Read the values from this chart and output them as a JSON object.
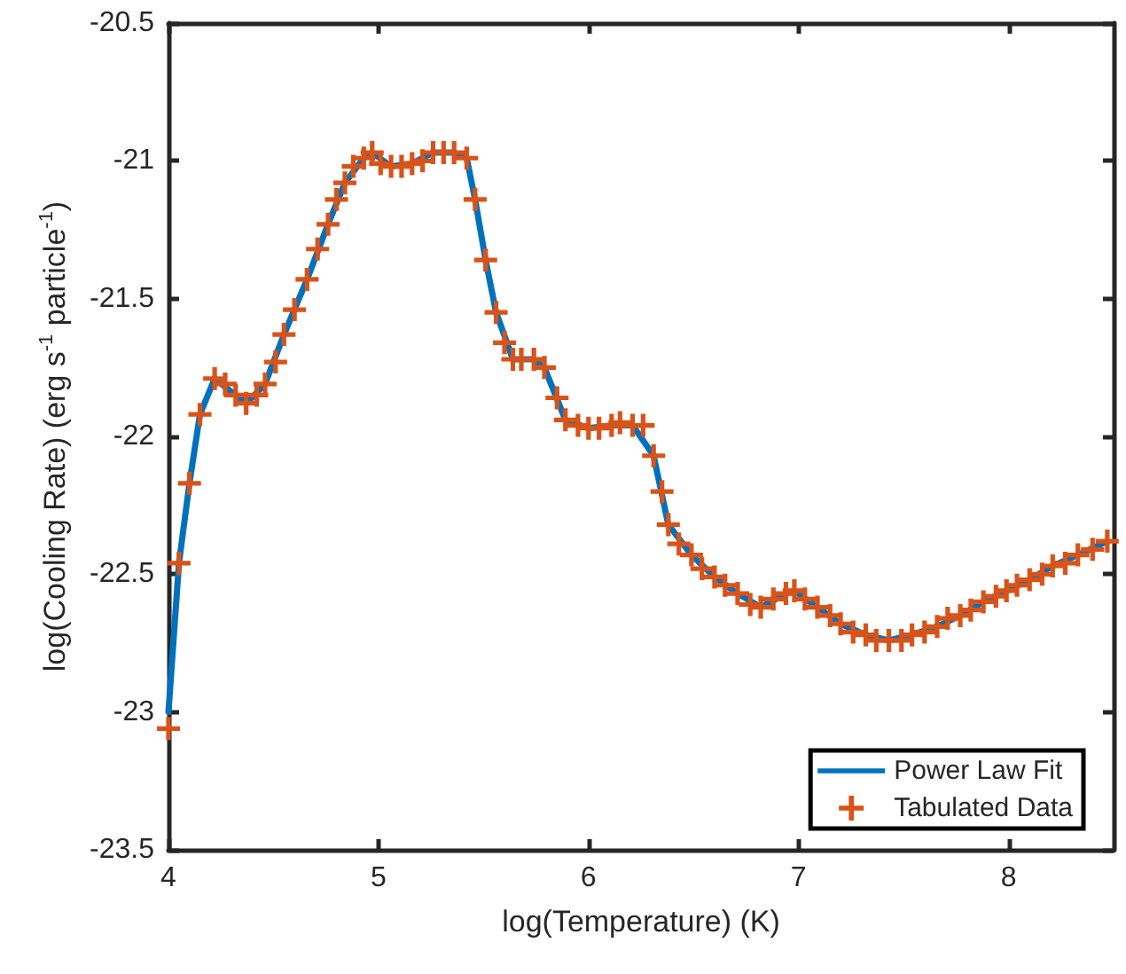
{
  "chart_data": {
    "type": "line",
    "xlabel": "log(Temperature) (K)",
    "ylabel": "log(Cooling Rate) (erg s$^{-1}$ particle$^{-1}$)",
    "xlim": [
      4,
      8.5
    ],
    "xticks": [
      4,
      5,
      6,
      7,
      8
    ],
    "ylim": [
      -23.5,
      -20.5
    ],
    "yticks": [
      -23.5,
      -23,
      -22.5,
      -22,
      -21.5,
      -21,
      -20.5
    ],
    "grid": false,
    "legend": "bottom right",
    "series": [
      {
        "name": "Power Law Fit",
        "marker": "none",
        "line_style": "solid",
        "color": "#0072bd",
        "x": [
          4.0,
          4.05,
          4.1,
          4.15,
          4.22,
          4.32,
          4.37,
          4.46,
          4.55,
          4.66,
          4.76,
          4.84,
          4.93,
          4.97,
          5.06,
          5.16,
          5.26,
          5.36,
          5.42,
          5.46,
          5.51,
          5.56,
          5.64,
          5.74,
          5.79,
          5.89,
          6.0,
          6.11,
          6.21,
          6.31,
          6.38,
          6.49,
          6.6,
          6.71,
          6.82,
          6.94,
          6.98,
          7.09,
          7.2,
          7.32,
          7.43,
          7.54,
          7.66,
          7.77,
          7.88,
          7.99,
          8.1,
          8.21,
          8.33,
          8.47
        ],
        "values": [
          -23.0,
          -22.46,
          -22.17,
          -21.92,
          -21.79,
          -21.85,
          -21.88,
          -21.81,
          -21.63,
          -21.43,
          -21.23,
          -21.08,
          -20.99,
          -20.97,
          -21.02,
          -21.01,
          -20.97,
          -20.97,
          -20.99,
          -21.14,
          -21.36,
          -21.55,
          -21.72,
          -21.72,
          -21.75,
          -21.94,
          -21.97,
          -21.96,
          -21.96,
          -22.07,
          -22.32,
          -22.43,
          -22.51,
          -22.57,
          -22.62,
          -22.57,
          -22.56,
          -22.62,
          -22.68,
          -22.72,
          -22.74,
          -22.72,
          -22.69,
          -22.65,
          -22.6,
          -22.56,
          -22.52,
          -22.47,
          -22.43,
          -22.38
        ]
      },
      {
        "name": "Tabulated Data",
        "type": "scatter",
        "marker": "cross",
        "color": "#d95319",
        "x": [
          4.0,
          4.05,
          4.1,
          4.15,
          4.22,
          4.27,
          4.32,
          4.37,
          4.42,
          4.46,
          4.51,
          4.55,
          4.6,
          4.66,
          4.71,
          4.76,
          4.8,
          4.84,
          4.88,
          4.93,
          4.97,
          5.01,
          5.06,
          5.11,
          5.16,
          5.21,
          5.26,
          5.31,
          5.36,
          5.42,
          5.46,
          5.51,
          5.56,
          5.6,
          5.64,
          5.68,
          5.74,
          5.79,
          5.85,
          5.89,
          5.95,
          6.0,
          6.05,
          6.11,
          6.15,
          6.21,
          6.26,
          6.31,
          6.35,
          6.38,
          6.43,
          6.49,
          6.54,
          6.6,
          6.65,
          6.71,
          6.77,
          6.82,
          6.88,
          6.94,
          6.98,
          7.03,
          7.09,
          7.15,
          7.2,
          7.26,
          7.32,
          7.37,
          7.43,
          7.49,
          7.54,
          7.6,
          7.66,
          7.71,
          7.77,
          7.82,
          7.88,
          7.94,
          7.99,
          8.04,
          8.1,
          8.16,
          8.21,
          8.27,
          8.33,
          8.4,
          8.47
        ],
        "values": [
          -23.06,
          -22.46,
          -22.17,
          -21.92,
          -21.79,
          -21.81,
          -21.85,
          -21.88,
          -21.85,
          -21.81,
          -21.73,
          -21.63,
          -21.54,
          -21.43,
          -21.32,
          -21.23,
          -21.14,
          -21.08,
          -21.02,
          -20.99,
          -20.97,
          -21.01,
          -21.02,
          -21.02,
          -21.01,
          -21.0,
          -20.97,
          -20.97,
          -20.97,
          -20.99,
          -21.14,
          -21.36,
          -21.55,
          -21.66,
          -21.72,
          -21.72,
          -21.72,
          -21.75,
          -21.86,
          -21.94,
          -21.96,
          -21.97,
          -21.97,
          -21.96,
          -21.95,
          -21.96,
          -21.96,
          -22.07,
          -22.2,
          -22.32,
          -22.39,
          -22.43,
          -22.48,
          -22.51,
          -22.54,
          -22.57,
          -22.61,
          -22.62,
          -22.59,
          -22.57,
          -22.56,
          -22.59,
          -22.62,
          -22.65,
          -22.68,
          -22.71,
          -22.72,
          -22.74,
          -22.74,
          -22.74,
          -22.72,
          -22.71,
          -22.69,
          -22.66,
          -22.65,
          -22.63,
          -22.6,
          -22.58,
          -22.56,
          -22.54,
          -22.52,
          -22.5,
          -22.47,
          -22.46,
          -22.43,
          -22.41,
          -22.38
        ]
      }
    ]
  }
}
